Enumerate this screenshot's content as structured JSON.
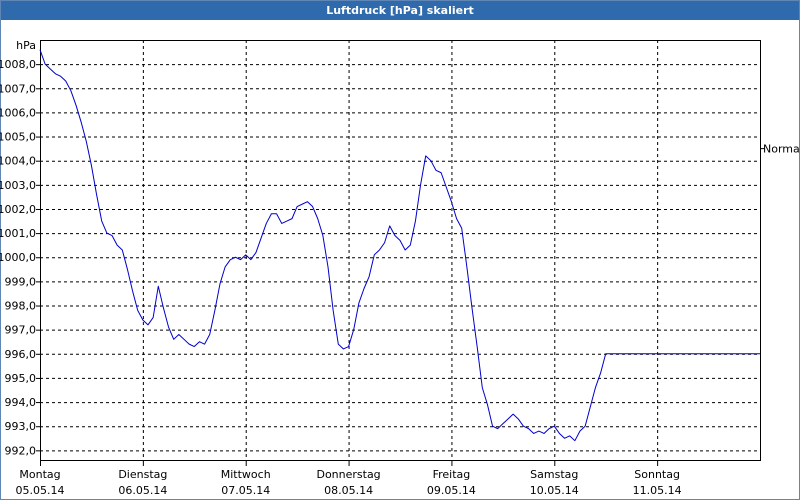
{
  "chart_data": {
    "type": "line",
    "title": "Luftdruck [hPa] skaliert",
    "ylabel": "hPa",
    "ylim": [
      991.6,
      1009.0
    ],
    "xlim": [
      0,
      7
    ],
    "grid": true,
    "y_ticks": [
      992.0,
      993.0,
      994.0,
      995.0,
      996.0,
      997.0,
      998.0,
      999.0,
      1000.0,
      1001.0,
      1002.0,
      1003.0,
      1004.0,
      1005.0,
      1006.0,
      1007.0,
      1008.0
    ],
    "y_tick_labels": [
      "992,0",
      "993,0",
      "994,0",
      "995,0",
      "996,0",
      "997,0",
      "998,0",
      "999,0",
      "1000,0",
      "1001,0",
      "1002,0",
      "1003,0",
      "1004,0",
      "1005,0",
      "1006,0",
      "1007,0",
      "1008,0"
    ],
    "x_ticks": [
      {
        "day": "Montag",
        "date": "05.05.14"
      },
      {
        "day": "Dienstag",
        "date": "06.05.14"
      },
      {
        "day": "Mittwoch",
        "date": "07.05.14"
      },
      {
        "day": "Donnerstag",
        "date": "08.05.14"
      },
      {
        "day": "Freitag",
        "date": "09.05.14"
      },
      {
        "day": "Samstag",
        "date": "10.05.14"
      },
      {
        "day": "Sonntag",
        "date": "11.05.14"
      }
    ],
    "reference_line": {
      "label": "Normal",
      "value": 1004.5
    },
    "series_color": "#0000cc",
    "grid_color": "#000000",
    "series": [
      {
        "x": [
          0.0,
          0.05,
          0.1,
          0.15,
          0.2,
          0.25,
          0.3,
          0.35,
          0.4,
          0.45,
          0.5,
          0.55,
          0.6,
          0.65,
          0.7,
          0.75,
          0.8,
          0.85,
          0.9,
          0.95,
          1.0,
          1.05,
          1.1,
          1.15,
          1.2,
          1.25,
          1.3,
          1.35,
          1.4,
          1.45,
          1.5,
          1.55,
          1.6,
          1.65,
          1.7,
          1.75,
          1.8,
          1.85,
          1.9,
          1.95,
          2.0,
          2.05,
          2.1,
          2.15,
          2.2,
          2.25,
          2.3,
          2.35,
          2.4,
          2.45,
          2.5,
          2.55,
          2.6,
          2.65,
          2.7,
          2.75,
          2.8,
          2.85,
          2.9,
          2.95,
          3.0,
          3.05,
          3.1,
          3.15,
          3.2,
          3.25,
          3.3,
          3.35,
          3.4,
          3.45,
          3.5,
          3.55,
          3.6,
          3.65,
          3.7,
          3.75,
          3.8,
          3.85,
          3.9,
          3.95,
          4.0,
          4.05,
          4.1,
          4.15,
          4.2,
          4.25,
          4.3,
          4.35,
          4.4,
          4.45,
          4.5,
          4.55,
          4.6,
          4.65,
          4.7,
          4.75,
          4.8,
          4.85,
          4.9,
          4.95,
          5.0,
          5.05,
          5.1,
          5.15,
          5.2,
          5.25,
          5.3,
          5.35,
          5.4,
          5.45,
          5.5,
          5.55,
          5.6,
          5.65,
          5.7,
          5.75,
          5.8,
          5.85,
          5.9,
          5.95,
          6.0,
          6.05,
          6.1,
          6.15,
          6.2,
          6.25,
          6.3,
          6.35,
          6.4,
          6.45,
          6.5,
          6.55,
          6.6,
          6.65,
          6.7,
          6.75,
          6.8,
          6.85,
          6.9,
          6.95,
          7.0
        ],
        "values": [
          1008.6,
          1008.0,
          1007.8,
          1007.6,
          1007.5,
          1007.3,
          1006.9,
          1006.3,
          1005.6,
          1004.8,
          1003.8,
          1002.6,
          1001.5,
          1001.0,
          1000.9,
          1000.5,
          1000.3,
          999.5,
          998.6,
          997.8,
          997.4,
          997.2,
          997.5,
          998.8,
          997.9,
          997.1,
          996.6,
          996.8,
          996.6,
          996.4,
          996.3,
          996.5,
          996.4,
          996.8,
          997.8,
          998.9,
          999.6,
          999.9,
          1000.0,
          999.9,
          1000.1,
          999.9,
          1000.2,
          1000.8,
          1001.4,
          1001.8,
          1001.8,
          1001.4,
          1001.5,
          1001.6,
          1002.1,
          1002.2,
          1002.3,
          1002.1,
          1001.6,
          1000.9,
          999.6,
          997.8,
          996.4,
          996.2,
          996.3,
          997.0,
          998.1,
          998.7,
          999.2,
          1000.1,
          1000.3,
          1000.6,
          1001.3,
          1000.9,
          1000.7,
          1000.3,
          1000.5,
          1001.5,
          1003.0,
          1004.2,
          1004.0,
          1003.6,
          1003.5,
          1002.9,
          1002.3,
          1001.6,
          1001.2,
          999.6,
          997.9,
          996.3,
          994.6,
          993.9,
          993.0,
          992.9,
          993.1,
          993.3,
          993.5,
          993.3,
          993.0,
          992.9,
          992.7,
          992.8,
          992.7,
          992.9,
          993.0,
          992.7,
          992.5,
          992.6,
          992.4,
          992.8,
          993.0,
          993.8,
          994.6,
          995.2,
          996.0,
          996.0,
          996.0,
          996.0,
          996.0,
          996.0,
          996.0,
          996.0,
          996.0,
          996.0,
          996.0,
          996.0,
          996.0,
          996.0,
          996.0,
          996.0,
          996.0,
          996.0,
          996.0,
          996.0,
          996.0,
          996.0,
          996.0,
          996.0,
          996.0,
          996.0,
          996.0,
          996.0,
          996.0,
          996.0,
          996.0
        ]
      }
    ]
  }
}
